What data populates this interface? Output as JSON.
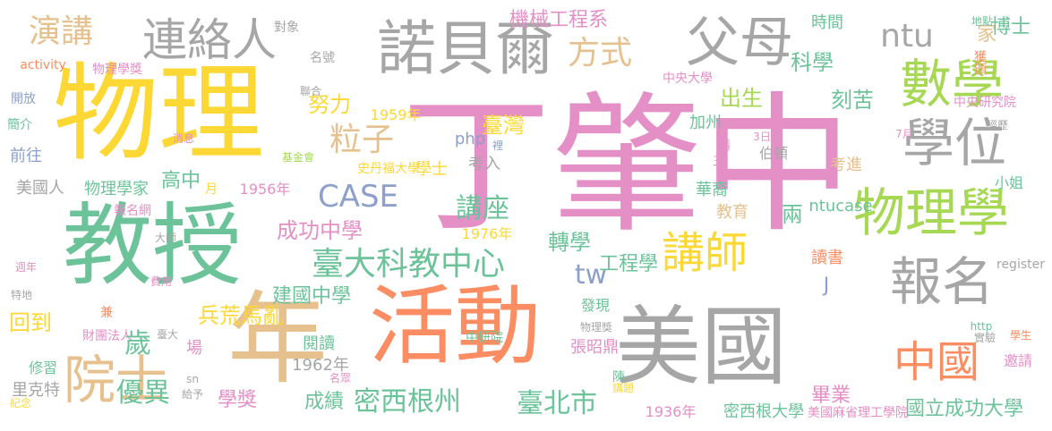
{
  "palette": {
    "pink": "#e48fc6",
    "yellow": "#fdd835",
    "green": "#6cc39a",
    "gray": "#a6a6a6",
    "tan": "#e6c18e",
    "lime": "#a6d854",
    "orange": "#fc8d62",
    "blue": "#8da0cb"
  },
  "words": [
    {
      "text": "丁肇中",
      "color": "pink"
    },
    {
      "text": "物理",
      "color": "yellow"
    },
    {
      "text": "教授",
      "color": "green"
    },
    {
      "text": "活動",
      "color": "orange"
    },
    {
      "text": "年",
      "color": "tan"
    },
    {
      "text": "美國",
      "color": "gray"
    },
    {
      "text": "諾貝爾",
      "color": "gray"
    },
    {
      "text": "連絡人",
      "color": "gray"
    },
    {
      "text": "父母",
      "color": "gray"
    },
    {
      "text": "數學",
      "color": "lime"
    },
    {
      "text": "物理學",
      "color": "lime"
    },
    {
      "text": "學位",
      "color": "gray"
    },
    {
      "text": "報名",
      "color": "gray"
    },
    {
      "text": "院士",
      "color": "tan"
    },
    {
      "text": "中國",
      "color": "orange"
    },
    {
      "text": "講師",
      "color": "yellow"
    },
    {
      "text": "臺大科教中心",
      "color": "green"
    },
    {
      "text": "CASE",
      "color": "blue"
    },
    {
      "text": "演講",
      "color": "tan"
    },
    {
      "text": "方式",
      "color": "tan"
    },
    {
      "text": "ntu",
      "color": "gray"
    },
    {
      "text": "科學",
      "color": "green"
    },
    {
      "text": "粒子",
      "color": "tan"
    },
    {
      "text": "出生",
      "color": "lime"
    },
    {
      "text": "刻苦",
      "color": "green"
    },
    {
      "text": "努力",
      "color": "yellow"
    },
    {
      "text": "家",
      "color": "tan"
    },
    {
      "text": "博士",
      "color": "green"
    },
    {
      "text": "機械工程系",
      "color": "pink"
    },
    {
      "text": "時間",
      "color": "green"
    },
    {
      "text": "tw",
      "color": "blue"
    },
    {
      "text": "講座",
      "color": "green"
    },
    {
      "text": "密西根州",
      "color": "green"
    },
    {
      "text": "臺北市",
      "color": "green"
    },
    {
      "text": "兵荒馬亂",
      "color": "yellow"
    },
    {
      "text": "回到",
      "color": "yellow"
    },
    {
      "text": "成功中學",
      "color": "pink"
    },
    {
      "text": "建國中學",
      "color": "green"
    },
    {
      "text": "畢業",
      "color": "pink"
    },
    {
      "text": "國立成功大學",
      "color": "green"
    },
    {
      "text": "密西根大學",
      "color": "green"
    },
    {
      "text": "美國麻省理工學院",
      "color": "pink"
    },
    {
      "text": "1936年",
      "color": "pink"
    },
    {
      "text": "1956年",
      "color": "pink"
    },
    {
      "text": "1959年",
      "color": "yellow"
    },
    {
      "text": "1962年",
      "color": "gray"
    },
    {
      "text": "1976年",
      "color": "yellow"
    },
    {
      "text": "臺灣",
      "color": "yellow"
    },
    {
      "text": "加州",
      "color": "green"
    },
    {
      "text": "中央研究院",
      "color": "pink"
    },
    {
      "text": "考入",
      "color": "gray"
    },
    {
      "text": "考進",
      "color": "tan"
    },
    {
      "text": "學士",
      "color": "yellow"
    },
    {
      "text": "史丹福大學",
      "color": "yellow"
    },
    {
      "text": "華裔",
      "color": "green"
    },
    {
      "text": "伯頓",
      "color": "gray"
    },
    {
      "text": "ntucase",
      "color": "green"
    },
    {
      "text": "小姐",
      "color": "green"
    },
    {
      "text": "高中",
      "color": "green"
    },
    {
      "text": "物理學家",
      "color": "green"
    },
    {
      "text": "美國人",
      "color": "gray"
    },
    {
      "text": "前往",
      "color": "blue"
    },
    {
      "text": "簡介",
      "color": "green"
    },
    {
      "text": "開放",
      "color": "blue"
    },
    {
      "text": "activity",
      "color": "orange"
    },
    {
      "text": "物理學獎",
      "color": "pink"
    },
    {
      "text": "名號",
      "color": "gray"
    },
    {
      "text": "對象",
      "color": "gray"
    },
    {
      "text": "聯合",
      "color": "gray"
    },
    {
      "text": "消息",
      "color": "pink"
    },
    {
      "text": "基金會",
      "color": "lime"
    },
    {
      "text": "報名網",
      "color": "pink"
    },
    {
      "text": "大師",
      "color": "gray"
    },
    {
      "text": "費用",
      "color": "pink"
    },
    {
      "text": "週年",
      "color": "pink"
    },
    {
      "text": "特地",
      "color": "gray"
    },
    {
      "text": "兼",
      "color": "orange"
    },
    {
      "text": "財團法人",
      "color": "pink"
    },
    {
      "text": "臺大",
      "color": "gray"
    },
    {
      "text": "場",
      "color": "pink"
    },
    {
      "text": "閱讀",
      "color": "green"
    },
    {
      "text": "里克特",
      "color": "gray"
    },
    {
      "text": "修習",
      "color": "green"
    },
    {
      "text": "sn",
      "color": "gray"
    },
    {
      "text": "給予",
      "color": "gray"
    },
    {
      "text": "名眾",
      "color": "pink"
    },
    {
      "text": "紀念",
      "color": "yellow"
    },
    {
      "text": "學獎",
      "color": "pink"
    },
    {
      "text": "成績",
      "color": "green"
    },
    {
      "text": "優異",
      "color": "green"
    },
    {
      "text": "歲",
      "color": "green"
    },
    {
      "text": "J",
      "color": "blue"
    },
    {
      "text": "教育",
      "color": "tan"
    },
    {
      "text": "讀書",
      "color": "orange"
    },
    {
      "text": "工程學",
      "color": "green"
    },
    {
      "text": "轉學",
      "color": "green"
    },
    {
      "text": "兩",
      "color": "green"
    },
    {
      "text": "月",
      "color": "yellow"
    },
    {
      "text": "php",
      "color": "blue"
    },
    {
      "text": "裡",
      "color": "blue"
    },
    {
      "text": "請",
      "color": "pink"
    },
    {
      "text": "三",
      "color": "pink"
    },
    {
      "text": "3日",
      "color": "pink"
    },
    {
      "text": "7月",
      "color": "pink"
    },
    {
      "text": "經歷",
      "color": "gray"
    },
    {
      "text": "獲頒",
      "color": "orange"
    },
    {
      "text": "地點",
      "color": "green"
    },
    {
      "text": "中央大學",
      "color": "pink"
    },
    {
      "text": "register",
      "color": "gray"
    },
    {
      "text": "http",
      "color": "green"
    },
    {
      "text": "實驗",
      "color": "gray"
    },
    {
      "text": "學生",
      "color": "orange"
    },
    {
      "text": "邀請",
      "color": "pink"
    },
    {
      "text": "發現",
      "color": "green"
    },
    {
      "text": "物理獎",
      "color": "gray"
    },
    {
      "text": "中研院",
      "color": "green"
    },
    {
      "text": "張昭鼎",
      "color": "pink"
    },
    {
      "text": "陳",
      "color": "green"
    },
    {
      "text": "講題",
      "color": "yellow"
    },
    {
      "text": "科普",
      "color": "pink"
    }
  ]
}
